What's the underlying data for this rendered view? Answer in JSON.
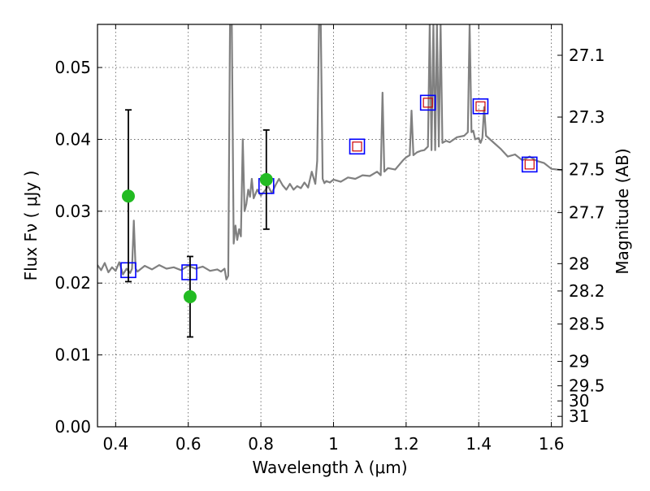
{
  "chart_data": {
    "type": "scatter",
    "title": "",
    "xlabel": "Wavelength  λ (μm)",
    "ylabel": "Flux  Fν  ( μJy )",
    "y2label": "Magnitude (AB)",
    "xlim": [
      0.35,
      1.63
    ],
    "ylim": [
      0.0,
      0.056
    ],
    "x_ticks": [
      0.4,
      0.6,
      0.8,
      1.0,
      1.2,
      1.4,
      1.6
    ],
    "x_tick_labels": [
      "0.4",
      "0.6",
      "0.8",
      "1",
      "1.2",
      "1.4",
      "1.6"
    ],
    "y_ticks": [
      0.0,
      0.01,
      0.02,
      0.03,
      0.04,
      0.05
    ],
    "y_tick_labels": [
      "0.00",
      "0.01",
      "0.02",
      "0.03",
      "0.04",
      "0.05"
    ],
    "y2_ticks": [
      {
        "label": "27.1",
        "flux": 0.0517
      },
      {
        "label": "27.3",
        "flux": 0.0431
      },
      {
        "label": "27.5",
        "flux": 0.0358
      },
      {
        "label": "27.7",
        "flux": 0.0298
      },
      {
        "label": "28",
        "flux": 0.0227
      },
      {
        "label": "28.2",
        "flux": 0.0189
      },
      {
        "label": "28.5",
        "flux": 0.0143
      },
      {
        "label": "29",
        "flux": 0.0091
      },
      {
        "label": "29.5",
        "flux": 0.0057
      },
      {
        "label": "30",
        "flux": 0.0036
      },
      {
        "label": "31",
        "flux": 0.00145
      }
    ],
    "grid": true,
    "series": [
      {
        "style": "line",
        "color": "#808080",
        "x": [
          0.35,
          0.36,
          0.37,
          0.38,
          0.39,
          0.4,
          0.41,
          0.42,
          0.43,
          0.44,
          0.445,
          0.45,
          0.455,
          0.46,
          0.48,
          0.5,
          0.52,
          0.54,
          0.56,
          0.58,
          0.6,
          0.62,
          0.64,
          0.66,
          0.68,
          0.69,
          0.7,
          0.705,
          0.71,
          0.715,
          0.72,
          0.725,
          0.73,
          0.735,
          0.74,
          0.745,
          0.75,
          0.755,
          0.76,
          0.765,
          0.77,
          0.775,
          0.78,
          0.79,
          0.8,
          0.81,
          0.82,
          0.83,
          0.84,
          0.85,
          0.86,
          0.87,
          0.88,
          0.89,
          0.9,
          0.91,
          0.92,
          0.93,
          0.94,
          0.95,
          0.955,
          0.96,
          0.965,
          0.97,
          0.975,
          0.98,
          0.99,
          1.0,
          1.02,
          1.04,
          1.06,
          1.08,
          1.1,
          1.12,
          1.13,
          1.135,
          1.14,
          1.15,
          1.17,
          1.19,
          1.2,
          1.21,
          1.215,
          1.22,
          1.23,
          1.24,
          1.25,
          1.26,
          1.265,
          1.27,
          1.275,
          1.28,
          1.285,
          1.29,
          1.295,
          1.3,
          1.31,
          1.32,
          1.34,
          1.36,
          1.37,
          1.375,
          1.38,
          1.385,
          1.39,
          1.4,
          1.405,
          1.41,
          1.415,
          1.42,
          1.44,
          1.46,
          1.48,
          1.5,
          1.52,
          1.54,
          1.56,
          1.58,
          1.6,
          1.63
        ],
        "y": [
          0.0225,
          0.0218,
          0.0228,
          0.0215,
          0.0222,
          0.0217,
          0.0229,
          0.0212,
          0.022,
          0.0214,
          0.022,
          0.0287,
          0.022,
          0.0216,
          0.0224,
          0.0219,
          0.0225,
          0.022,
          0.0222,
          0.0218,
          0.0224,
          0.022,
          0.0223,
          0.0217,
          0.0219,
          0.0216,
          0.022,
          0.0205,
          0.021,
          0.056,
          0.056,
          0.0255,
          0.028,
          0.026,
          0.0275,
          0.0265,
          0.04,
          0.03,
          0.031,
          0.033,
          0.032,
          0.0345,
          0.0318,
          0.033,
          0.0322,
          0.0328,
          0.0335,
          0.0325,
          0.0336,
          0.0345,
          0.0336,
          0.033,
          0.0338,
          0.033,
          0.0335,
          0.0332,
          0.034,
          0.0333,
          0.0355,
          0.0338,
          0.037,
          0.056,
          0.056,
          0.0345,
          0.0339,
          0.0342,
          0.034,
          0.0344,
          0.0341,
          0.0347,
          0.0345,
          0.035,
          0.0349,
          0.0355,
          0.035,
          0.0465,
          0.0355,
          0.036,
          0.0358,
          0.037,
          0.0375,
          0.0378,
          0.044,
          0.0378,
          0.0382,
          0.0384,
          0.0385,
          0.039,
          0.056,
          0.0385,
          0.056,
          0.0385,
          0.056,
          0.039,
          0.056,
          0.0395,
          0.0398,
          0.0396,
          0.0403,
          0.0405,
          0.041,
          0.056,
          0.041,
          0.0412,
          0.04,
          0.0402,
          0.0395,
          0.0402,
          0.0445,
          0.0405,
          0.0396,
          0.0387,
          0.0376,
          0.0379,
          0.0371,
          0.0376,
          0.037,
          0.0367,
          0.0359,
          0.0357
        ]
      },
      {
        "name": "",
        "style": "open-square",
        "color": "#0000ff",
        "x": [
          0.435,
          0.603,
          0.815,
          1.065,
          1.26,
          1.405,
          1.54
        ],
        "y": [
          0.0218,
          0.0215,
          0.0335,
          0.039,
          0.0451,
          0.0446,
          0.0365
        ]
      },
      {
        "name": "",
        "style": "small-open-square",
        "color": "#cc0000",
        "x": [
          1.065,
          1.26,
          1.405,
          1.54
        ],
        "y": [
          0.039,
          0.0451,
          0.0446,
          0.0365
        ]
      },
      {
        "name": "",
        "style": "filled-circle-errorbar",
        "color": "#22bb22",
        "x": [
          0.435,
          0.605,
          0.815
        ],
        "y": [
          0.0321,
          0.0181,
          0.0344
        ],
        "yerr_low": [
          0.0202,
          0.0125,
          0.0275
        ],
        "yerr_high": [
          0.0441,
          0.0237,
          0.0413
        ]
      }
    ]
  }
}
